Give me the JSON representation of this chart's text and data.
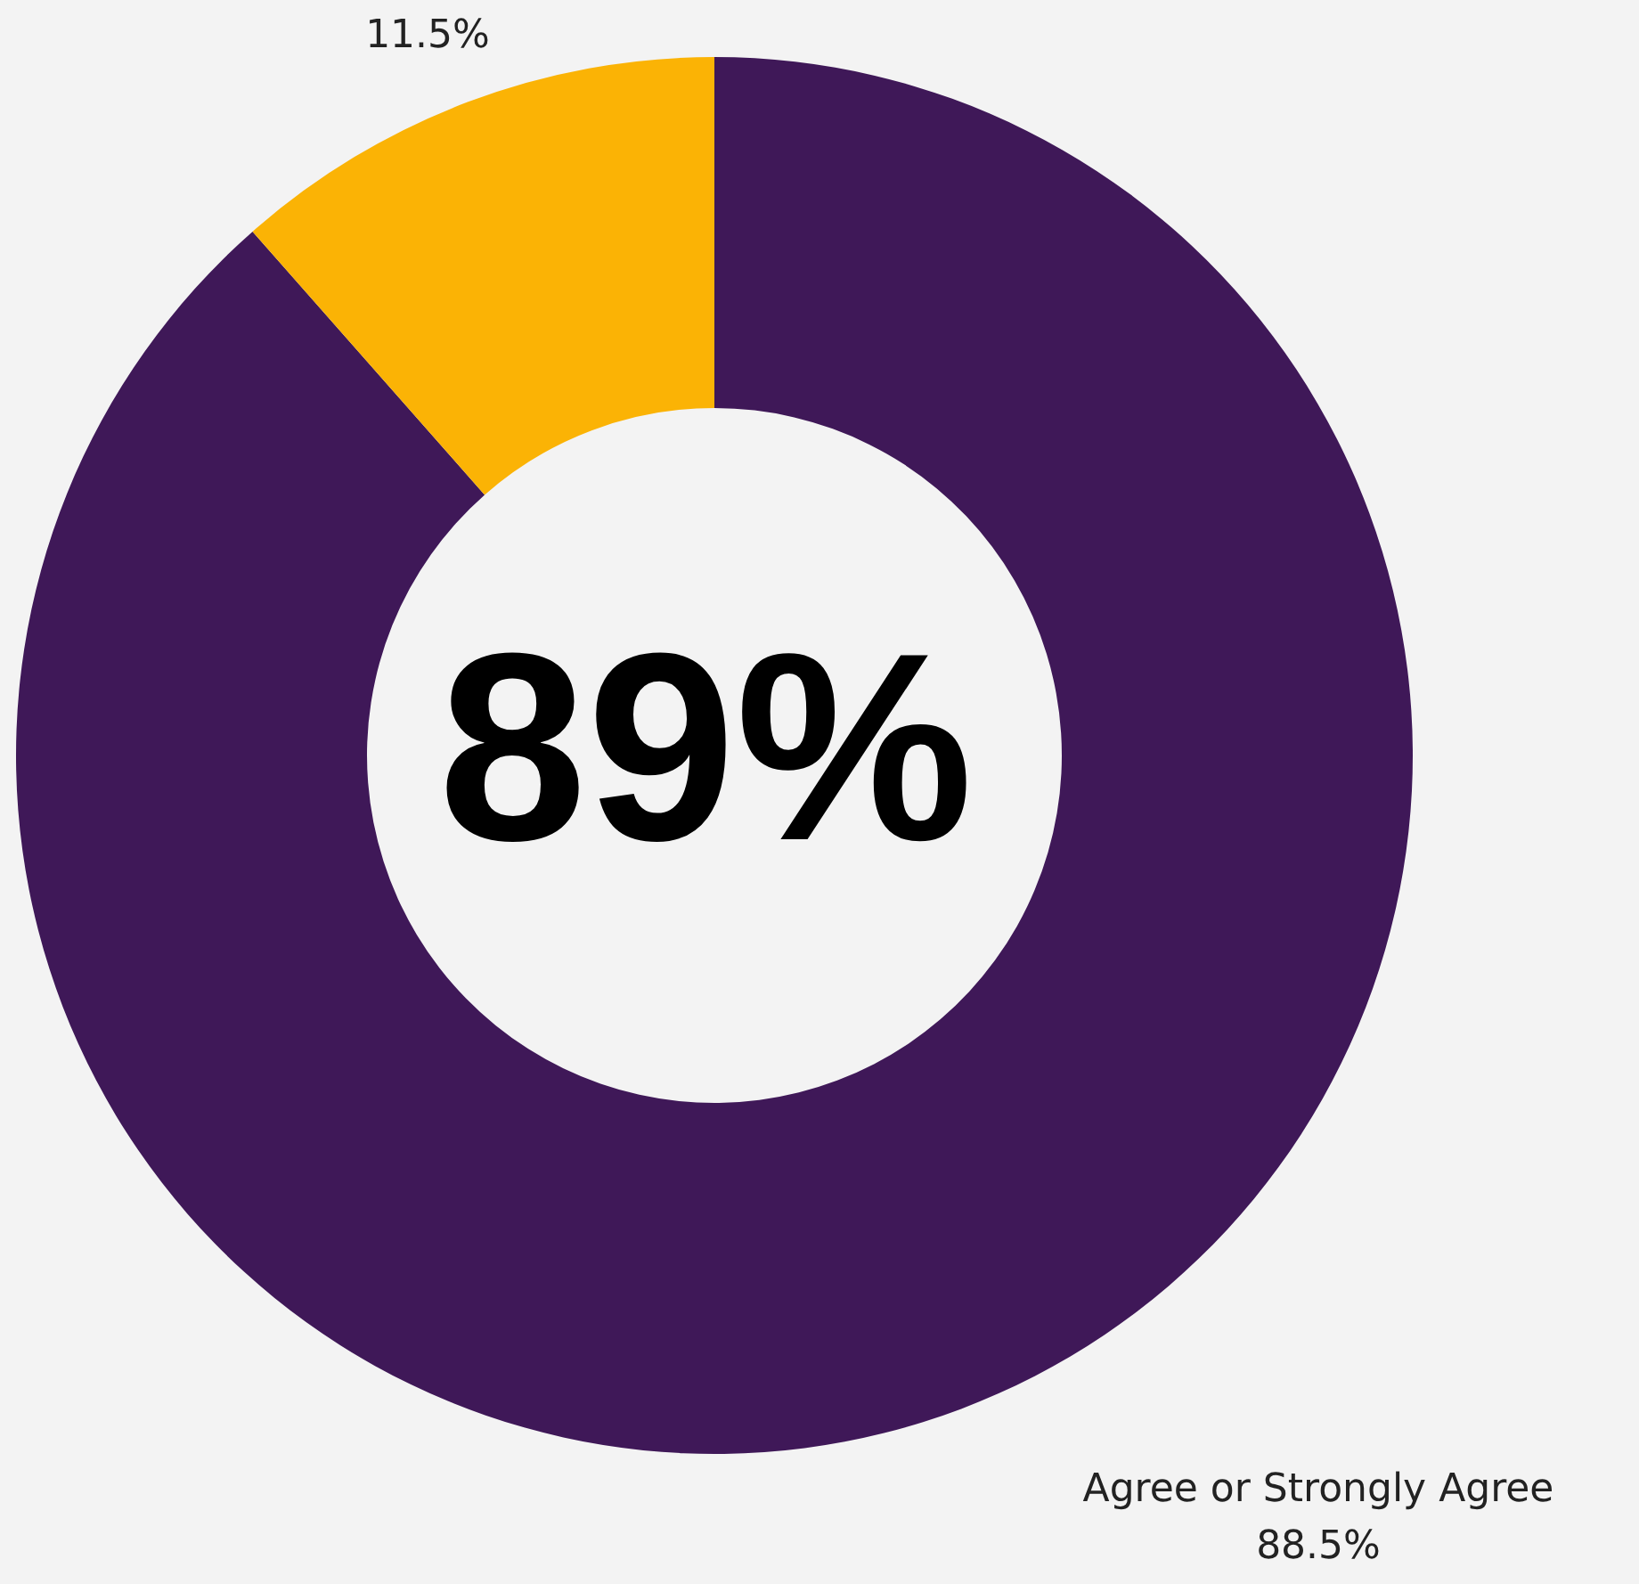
{
  "chart_data": {
    "type": "donut",
    "categories": [
      "Agree or Strongly Agree",
      null
    ],
    "values": [
      88.5,
      11.5
    ],
    "value_labels": [
      "88.5%",
      "11.5%"
    ],
    "colors": [
      "#3f1858",
      "#fbb305"
    ],
    "annotations": [
      "89%"
    ],
    "legend": false
  }
}
